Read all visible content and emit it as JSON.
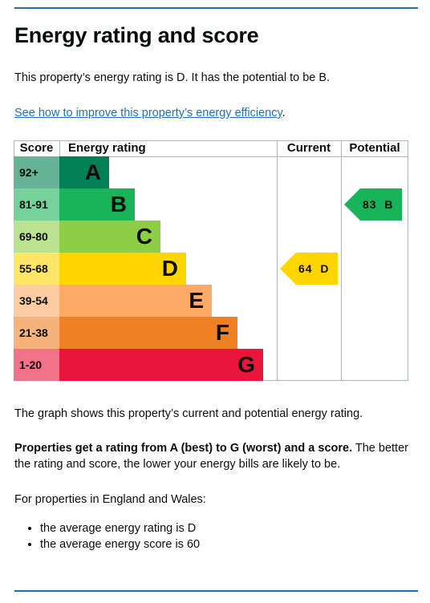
{
  "heading": "Energy rating and score",
  "intro": "This property’s energy rating is D. It has the potential to be B.",
  "improve_link": "See how to improve this property’s energy efficiency",
  "improve_link_suffix": ".",
  "chart_data": {
    "type": "table",
    "headers": {
      "score": "Score",
      "rating": "Energy rating",
      "current": "Current",
      "potential": "Potential"
    },
    "bands": [
      {
        "score": "92+",
        "letter": "A",
        "color": "#008054"
      },
      {
        "score": "81-91",
        "letter": "B",
        "color": "#19b459"
      },
      {
        "score": "69-80",
        "letter": "C",
        "color": "#8dce46"
      },
      {
        "score": "55-68",
        "letter": "D",
        "color": "#ffd500"
      },
      {
        "score": "39-54",
        "letter": "E",
        "color": "#fcaa65"
      },
      {
        "score": "21-38",
        "letter": "F",
        "color": "#ef8023"
      },
      {
        "score": "1-20",
        "letter": "G",
        "color": "#e9153b"
      }
    ],
    "current": {
      "score": 64,
      "letter": "D",
      "label": "64  D",
      "color": "#ffd500"
    },
    "potential": {
      "score": 83,
      "letter": "B",
      "label": "83  B",
      "color": "#19b459"
    }
  },
  "graph_caption": "The graph shows this property’s current and potential energy rating.",
  "rating_bold": "Properties get a rating from A (best) to G (worst) and a score.",
  "rating_rest": " The better the rating and score, the lower your energy bills are likely to be.",
  "england_wales": "For properties in England and Wales:",
  "averages": [
    "the average energy rating is D",
    "the average energy score is 60"
  ]
}
